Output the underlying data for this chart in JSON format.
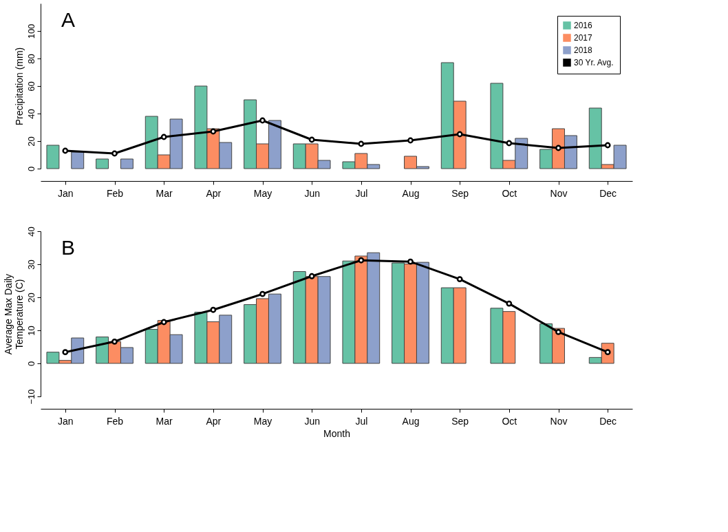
{
  "chart_data": [
    {
      "type": "bar",
      "title": "A",
      "ylabel": "Precipitation (mm)",
      "categories": [
        "Jan",
        "Feb",
        "Mar",
        "Apr",
        "May",
        "Jun",
        "Jul",
        "Aug",
        "Sep",
        "Oct",
        "Nov",
        "Dec"
      ],
      "series": [
        {
          "name": "2016",
          "color": "#66c2a5",
          "values": [
            17,
            7,
            38,
            60,
            50,
            18,
            5,
            null,
            77,
            62,
            14,
            44
          ]
        },
        {
          "name": "2017",
          "color": "#fc8d62",
          "values": [
            null,
            null,
            10,
            29,
            18,
            18,
            11,
            9,
            49,
            6,
            29,
            3
          ]
        },
        {
          "name": "2018",
          "color": "#8da0cb",
          "values": [
            12,
            7,
            36,
            19,
            35,
            6,
            3,
            1.5,
            null,
            22,
            24,
            17
          ]
        },
        {
          "name": "30 Yr. Avg.",
          "type": "line",
          "color": "#000000",
          "values": [
            13,
            11,
            23,
            27,
            35,
            21,
            18,
            20.5,
            25,
            18.5,
            15,
            17
          ]
        }
      ],
      "ylim": [
        0,
        120
      ],
      "yticks": [
        0,
        20,
        40,
        60,
        80,
        100
      ],
      "grid": false,
      "legend": "top right",
      "marker": "circle",
      "line_style": "solid"
    },
    {
      "type": "bar",
      "title": "B",
      "ylabel": "Average Max Daily\nTemperature (C)",
      "xlabel": "Month",
      "categories": [
        "Jan",
        "Feb",
        "Mar",
        "Apr",
        "May",
        "Jun",
        "Jul",
        "Aug",
        "Sep",
        "Oct",
        "Nov",
        "Dec"
      ],
      "series": [
        {
          "color": "#66c2a5",
          "values": [
            3.4,
            8,
            10.3,
            15.5,
            17.8,
            27.8,
            31,
            30.4,
            22.9,
            16.7,
            12,
            1.8
          ]
        },
        {
          "color": "#fc8d62",
          "values": [
            0.9,
            6.6,
            13,
            12.6,
            19.6,
            26.3,
            32.5,
            30.1,
            22.9,
            15.7,
            10.6,
            6.1
          ]
        },
        {
          "color": "#8da0cb",
          "values": [
            7.7,
            4.8,
            8.7,
            14.6,
            21,
            26.3,
            33.5,
            30.6,
            null,
            null,
            null,
            null
          ]
        },
        {
          "type": "line",
          "color": "#000000",
          "values": [
            3.4,
            6.6,
            12.5,
            16.2,
            21,
            26.4,
            31.2,
            30.8,
            25.5,
            18.1,
            9.5,
            3.4
          ]
        }
      ],
      "ylim": [
        -10,
        40
      ],
      "yticks": [
        -10,
        0,
        10,
        20,
        30,
        40
      ],
      "grid": false,
      "legend": false,
      "marker": "circle",
      "line_style": "solid"
    }
  ]
}
